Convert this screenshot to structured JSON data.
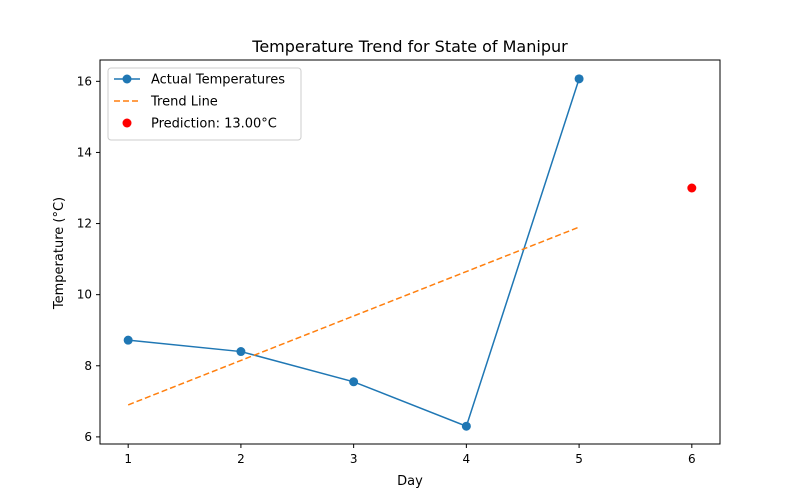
{
  "chart_data": {
    "type": "line",
    "title": "Temperature Trend for State of Manipur",
    "xlabel": "Day",
    "ylabel": "Temperature (°C)",
    "xlim": [
      0.75,
      6.25
    ],
    "ylim": [
      5.8,
      16.6
    ],
    "x_ticks": [
      1,
      2,
      3,
      4,
      5,
      6
    ],
    "y_ticks": [
      6,
      8,
      10,
      12,
      14,
      16
    ],
    "grid": false,
    "legend_position": "top-left",
    "series": [
      {
        "name": "Actual Temperatures",
        "style": "line-markers",
        "color": "#1f77b4",
        "x": [
          1,
          2,
          3,
          4,
          5
        ],
        "y": [
          8.72,
          8.4,
          7.55,
          6.3,
          16.07
        ]
      },
      {
        "name": "Trend Line",
        "style": "dashed",
        "color": "#ff7f0e",
        "x": [
          1,
          5
        ],
        "y": [
          6.9,
          11.9
        ]
      },
      {
        "name": "Prediction: 13.00°C",
        "style": "point",
        "color": "#ff0000",
        "x": [
          6
        ],
        "y": [
          13.0
        ]
      }
    ]
  }
}
